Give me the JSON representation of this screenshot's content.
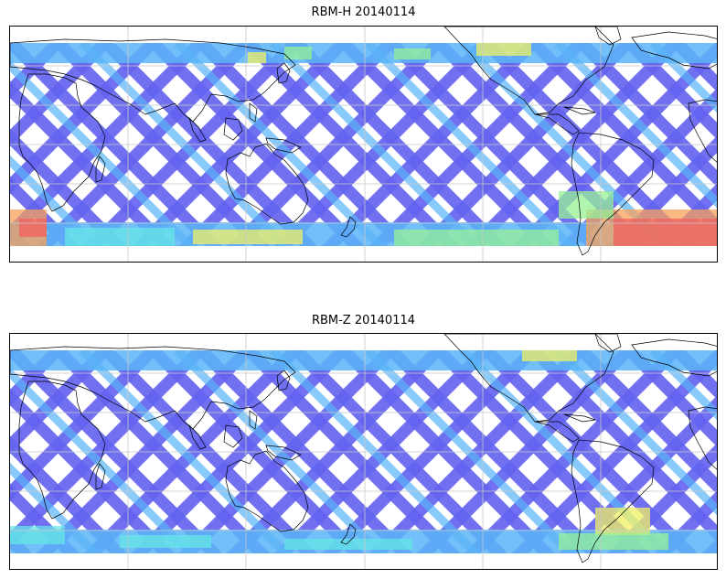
{
  "panels": [
    {
      "title": "RBM-H 20140114",
      "colors": {
        "blue": "#6464f0",
        "lightblue": "#5ab4f8",
        "cyan": "#66e6e6",
        "green": "#96f096",
        "yellow": "#f0f064",
        "orange": "#f8a05a",
        "red": "#f06060"
      }
    },
    {
      "title": "RBM-Z 20140114",
      "colors": {
        "blue": "#6464f0",
        "lightblue": "#5ab4f8",
        "cyan": "#66e6e6",
        "green": "#96f096",
        "yellow": "#f0f064",
        "orange": "#f8a05a",
        "red": "#f06060"
      }
    }
  ],
  "map": {
    "coastline_color": "#000000",
    "grid_color": "#c8c8c8",
    "grid": true
  }
}
